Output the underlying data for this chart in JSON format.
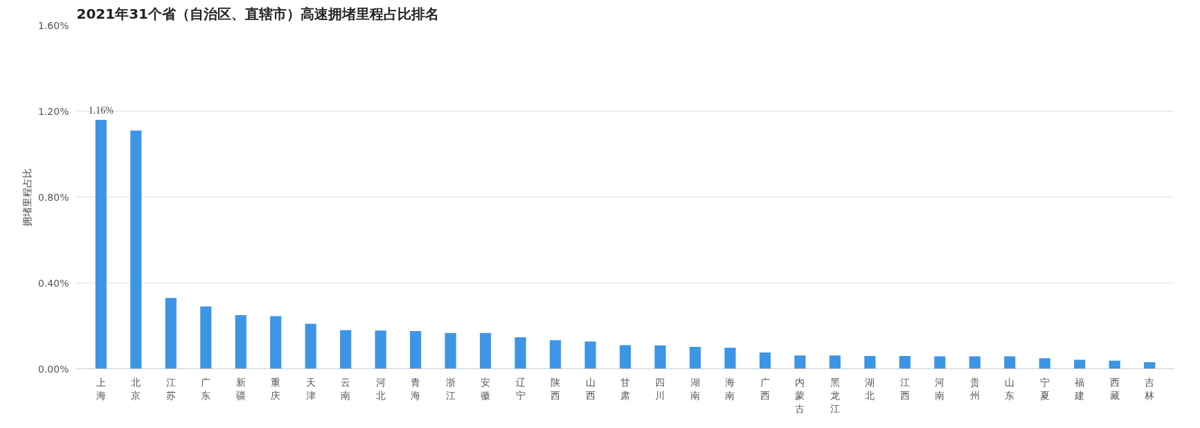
{
  "chart_data": {
    "type": "bar",
    "title": "2021年31个省（自治区、直辖市）高速拥堵里程占比排名",
    "ylabel": "拥堵里程占比",
    "categories": [
      "上海",
      "北京",
      "江苏",
      "广东",
      "新疆",
      "重庆",
      "天津",
      "云南",
      "河北",
      "青海",
      "浙江",
      "安徽",
      "辽宁",
      "陕西",
      "山西",
      "甘肃",
      "四川",
      "湖南",
      "海南",
      "广西",
      "内蒙古",
      "黑龙江",
      "湖北",
      "江西",
      "河南",
      "贵州",
      "山东",
      "宁夏",
      "福建",
      "西藏",
      "吉林"
    ],
    "values": [
      1.16,
      1.11,
      0.33,
      0.29,
      0.25,
      0.245,
      0.21,
      0.18,
      0.178,
      0.176,
      0.167,
      0.167,
      0.147,
      0.133,
      0.127,
      0.11,
      0.109,
      0.102,
      0.098,
      0.076,
      0.062,
      0.062,
      0.06,
      0.06,
      0.058,
      0.058,
      0.058,
      0.049,
      0.042,
      0.038,
      0.031
    ],
    "value_labels": [
      "1.16%",
      null,
      null,
      null,
      null,
      null,
      null,
      null,
      null,
      null,
      null,
      null,
      null,
      null,
      null,
      null,
      null,
      null,
      null,
      null,
      null,
      null,
      null,
      null,
      null,
      null,
      null,
      null,
      null,
      null,
      null
    ],
    "color": "#3d95e6",
    "ylim": [
      0,
      1.6
    ],
    "yticks": [
      {
        "value": 0,
        "label": "0.00%"
      },
      {
        "value": 0.4,
        "label": "0.40%"
      },
      {
        "value": 0.8,
        "label": "0.80%"
      },
      {
        "value": 1.2,
        "label": "1.20%"
      },
      {
        "value": 1.6,
        "label": "1.60%"
      }
    ],
    "grid": "y"
  }
}
